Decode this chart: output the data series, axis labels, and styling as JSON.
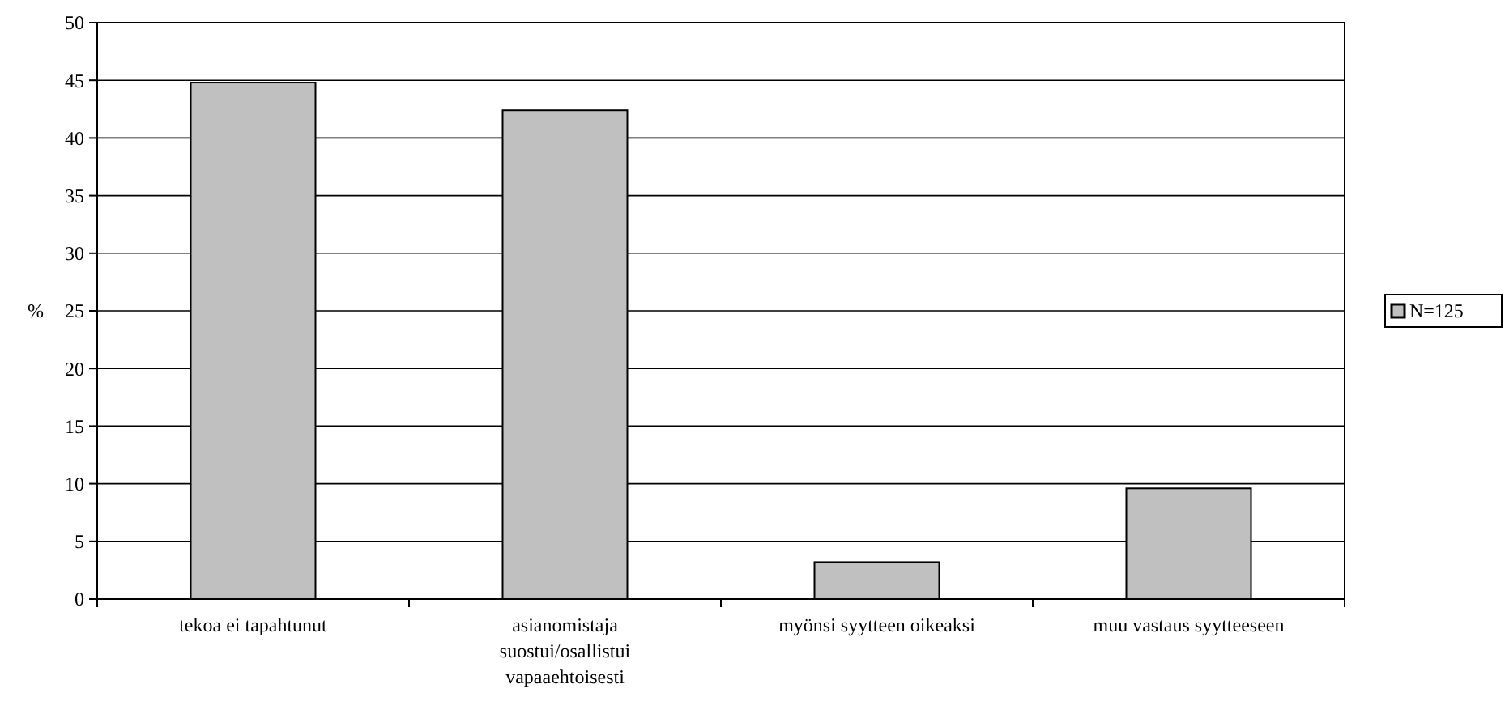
{
  "chart_data": {
    "type": "bar",
    "ylabel": "%",
    "categories": [
      "tekoa ei tapahtunut",
      "asianomistaja suostui/osallistui vapaaehtoisesti",
      "myönsi syytteen oikeaksi",
      "muu vastaus syytteeseen"
    ],
    "series": [
      {
        "name": "N=125",
        "color": "#c0c0c0",
        "values": [
          44.8,
          42.4,
          3.2,
          9.6
        ]
      }
    ],
    "ylim": [
      0,
      50
    ],
    "yticks": [
      0,
      5,
      10,
      15,
      20,
      25,
      30,
      35,
      40,
      45,
      50
    ],
    "grid": "y",
    "legend": "right"
  }
}
